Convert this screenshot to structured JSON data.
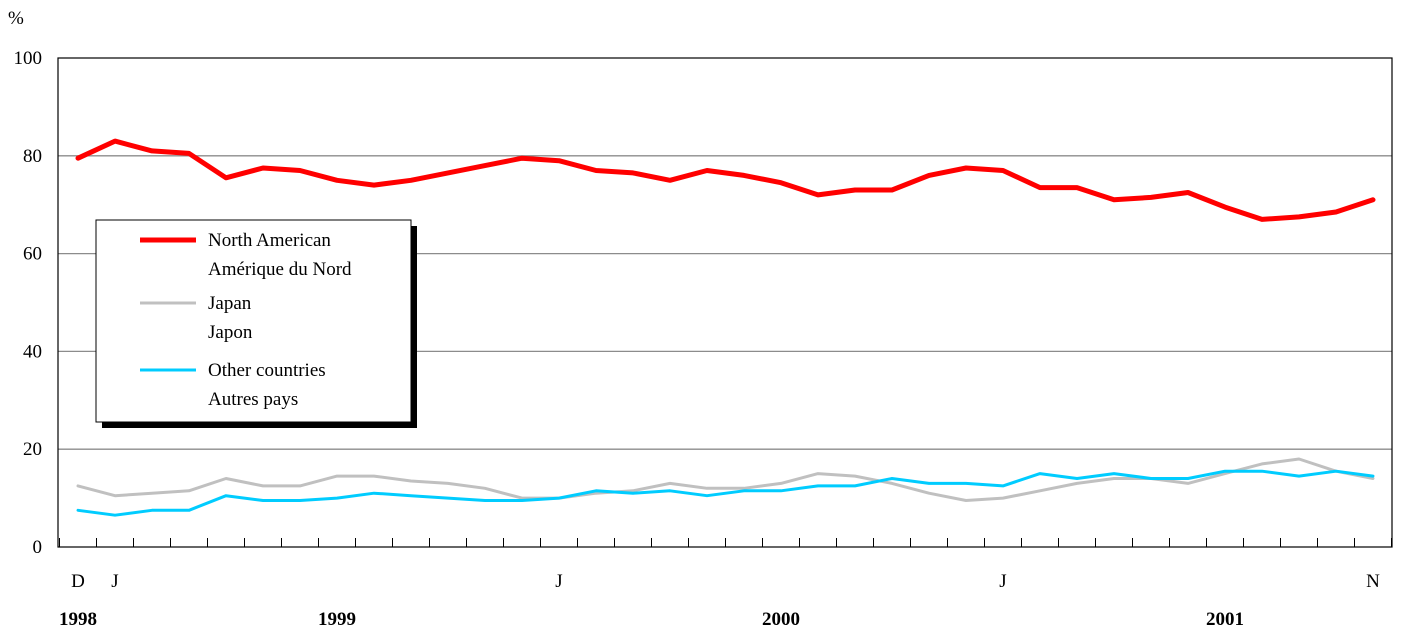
{
  "chart_data": {
    "type": "line",
    "unit_label": "%",
    "ylim": [
      0,
      100
    ],
    "yticks": [
      0,
      20,
      40,
      60,
      80,
      100
    ],
    "grid": true,
    "legend_placement": "left-middle",
    "month_labels": [
      {
        "index": 0,
        "label": "D"
      },
      {
        "index": 1,
        "label": "J"
      },
      {
        "index": 13,
        "label": "J"
      },
      {
        "index": 25,
        "label": "J"
      },
      {
        "index": 35,
        "label": "N"
      }
    ],
    "year_labels": [
      {
        "index": 0,
        "label": "1998"
      },
      {
        "index": 7,
        "label": "1999"
      },
      {
        "index": 19,
        "label": "2000"
      },
      {
        "index": 31,
        "label": "2001"
      }
    ],
    "series": [
      {
        "name": "North American",
        "name_fr": "Amérique du Nord",
        "color": "#ff0000",
        "values": [
          79.5,
          83,
          81,
          80.5,
          75.5,
          77.5,
          77,
          75,
          74,
          75,
          76.5,
          78,
          79.5,
          79,
          77,
          76.5,
          75,
          77,
          76,
          74.5,
          72,
          73,
          73,
          76,
          77.5,
          77,
          73.5,
          73.5,
          71,
          71.5,
          72.5,
          69.5,
          67,
          67.5,
          68.5,
          71
        ]
      },
      {
        "name": "Japan",
        "name_fr": "Japon",
        "color": "#c0c0c0",
        "values": [
          12.5,
          10.5,
          11,
          11.5,
          14,
          12.5,
          12.5,
          14.5,
          14.5,
          13.5,
          13,
          12,
          10,
          10,
          11,
          11.5,
          13,
          12,
          12,
          13,
          15,
          14.5,
          13,
          11,
          9.5,
          10,
          11.5,
          13,
          14,
          14,
          13,
          15,
          17,
          18,
          15.5,
          14
        ]
      },
      {
        "name": "Other countries",
        "name_fr": "Autres pays",
        "color": "#00ccff",
        "values": [
          7.5,
          6.5,
          7.5,
          7.5,
          10.5,
          9.5,
          9.5,
          10,
          11,
          10.5,
          10,
          9.5,
          9.5,
          10,
          11.5,
          11,
          11.5,
          10.5,
          11.5,
          11.5,
          12.5,
          12.5,
          14,
          13,
          13,
          12.5,
          15,
          14,
          15,
          14,
          14,
          15.5,
          15.5,
          14.5,
          15.5,
          14.5
        ]
      }
    ]
  }
}
